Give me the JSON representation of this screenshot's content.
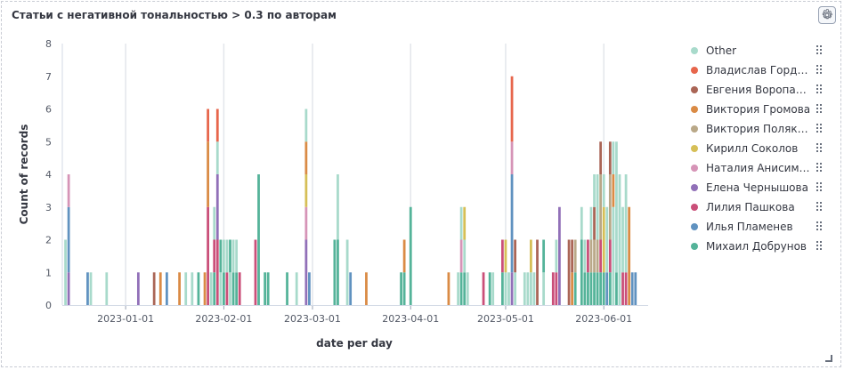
{
  "panel": {
    "title": "Статьи с негативной тональностью > 0.3 по авторам",
    "settings_icon": "gear-icon"
  },
  "chart_data": {
    "type": "bar",
    "stacked": true,
    "xlabel": "date per day",
    "ylabel": "Count of records",
    "ylim": [
      0,
      8
    ],
    "yticks": [
      0,
      1,
      2,
      3,
      4,
      5,
      6,
      7,
      8
    ],
    "xticks": [
      "2023-01-01",
      "2023-02-01",
      "2023-03-01",
      "2023-04-01",
      "2023-05-01",
      "2023-06-01"
    ],
    "xlim": [
      "2022-12-12",
      "2023-06-15"
    ],
    "grid": "vertical",
    "legend_position": "right",
    "series": [
      {
        "name": "Other",
        "color": "#a8dacb"
      },
      {
        "name": "Владислав Горделадзе",
        "color": "#e7664c"
      },
      {
        "name": "Евгения Воропаева",
        "color": "#aa6556"
      },
      {
        "name": "Виктория Громова",
        "color": "#da8b45"
      },
      {
        "name": "Виктория Полякова",
        "color": "#b9a888"
      },
      {
        "name": "Кирилл Соколов",
        "color": "#d6bf57"
      },
      {
        "name": "Наталия Анисимова",
        "color": "#d694b7"
      },
      {
        "name": "Елена Чернышова",
        "color": "#9170b8"
      },
      {
        "name": "Лилия Пашкова",
        "color": "#ca4f79"
      },
      {
        "name": "Илья Пламенев",
        "color": "#6092c0"
      },
      {
        "name": "Михаил Добрунов",
        "color": "#54b399"
      }
    ],
    "bars": [
      {
        "date": "2022-12-13",
        "stack": [
          [
            "Other",
            2
          ]
        ]
      },
      {
        "date": "2022-12-14",
        "stack": [
          [
            "Елена Чернышова",
            1
          ],
          [
            "Илья Пламенев",
            2
          ],
          [
            "Наталия Анисимова",
            1
          ]
        ]
      },
      {
        "date": "2022-12-20",
        "stack": [
          [
            "Илья Пламенев",
            1
          ]
        ]
      },
      {
        "date": "2022-12-21",
        "stack": [
          [
            "Other",
            1
          ]
        ]
      },
      {
        "date": "2022-12-26",
        "stack": [
          [
            "Other",
            1
          ]
        ]
      },
      {
        "date": "2023-01-05",
        "stack": [
          [
            "Елена Чернышова",
            1
          ]
        ]
      },
      {
        "date": "2023-01-10",
        "stack": [
          [
            "Евгения Воропаева",
            1
          ]
        ]
      },
      {
        "date": "2023-01-12",
        "stack": [
          [
            "Виктория Громова",
            1
          ]
        ]
      },
      {
        "date": "2023-01-14",
        "stack": [
          [
            "Илья Пламенев",
            1
          ]
        ]
      },
      {
        "date": "2023-01-18",
        "stack": [
          [
            "Виктория Громова",
            1
          ]
        ]
      },
      {
        "date": "2023-01-20",
        "stack": [
          [
            "Other",
            1
          ]
        ]
      },
      {
        "date": "2023-01-22",
        "stack": [
          [
            "Other",
            1
          ]
        ]
      },
      {
        "date": "2023-01-24",
        "stack": [
          [
            "Михаил Добрунов",
            1
          ]
        ]
      },
      {
        "date": "2023-01-26",
        "stack": [
          [
            "Виктория Громова",
            1
          ]
        ]
      },
      {
        "date": "2023-01-27",
        "stack": [
          [
            "Лилия Пашкова",
            3
          ],
          [
            "Виктория Громова",
            2
          ],
          [
            "Владислав Горделадзе",
            1
          ]
        ]
      },
      {
        "date": "2023-01-28",
        "stack": [
          [
            "Other",
            1
          ]
        ]
      },
      {
        "date": "2023-01-29",
        "stack": [
          [
            "Михаил Добрунов",
            1
          ],
          [
            "Лилия Пашкова",
            1
          ],
          [
            "Other",
            1
          ]
        ]
      },
      {
        "date": "2023-01-30",
        "stack": [
          [
            "Лилия Пашкова",
            2
          ],
          [
            "Елена Чернышова",
            2
          ],
          [
            "Other",
            1
          ],
          [
            "Владислав Горделадзе",
            1
          ]
        ]
      },
      {
        "date": "2023-01-31",
        "stack": [
          [
            "Other",
            1
          ],
          [
            "Михаил Добрунов",
            1
          ]
        ]
      },
      {
        "date": "2023-02-01",
        "stack": [
          [
            "Михаил Добрунов",
            1
          ],
          [
            "Other",
            1
          ]
        ]
      },
      {
        "date": "2023-02-02",
        "stack": [
          [
            "Лилия Пашкова",
            1
          ],
          [
            "Other",
            1
          ]
        ]
      },
      {
        "date": "2023-02-03",
        "stack": [
          [
            "Other",
            1
          ],
          [
            "Михаил Добрунов",
            1
          ]
        ]
      },
      {
        "date": "2023-02-04",
        "stack": [
          [
            "Михаил Добрунов",
            1
          ],
          [
            "Other",
            1
          ]
        ]
      },
      {
        "date": "2023-02-05",
        "stack": [
          [
            "Михаил Добрунов",
            1
          ],
          [
            "Other",
            1
          ]
        ]
      },
      {
        "date": "2023-02-06",
        "stack": [
          [
            "Лилия Пашкова",
            1
          ]
        ]
      },
      {
        "date": "2023-02-11",
        "stack": [
          [
            "Лилия Пашкова",
            2
          ]
        ]
      },
      {
        "date": "2023-02-12",
        "stack": [
          [
            "Михаил Добрунов",
            4
          ]
        ]
      },
      {
        "date": "2023-02-14",
        "stack": [
          [
            "Михаил Добрунов",
            1
          ]
        ]
      },
      {
        "date": "2023-02-15",
        "stack": [
          [
            "Михаил Добрунов",
            1
          ]
        ]
      },
      {
        "date": "2023-02-21",
        "stack": [
          [
            "Михаил Добрунов",
            1
          ]
        ]
      },
      {
        "date": "2023-02-24",
        "stack": [
          [
            "Other",
            1
          ]
        ]
      },
      {
        "date": "2023-02-27",
        "stack": [
          [
            "Елена Чернышова",
            2
          ],
          [
            "Наталия Анисимова",
            1
          ],
          [
            "Кирилл Соколов",
            1
          ],
          [
            "Виктория Громова",
            1
          ],
          [
            "Other",
            1
          ]
        ]
      },
      {
        "date": "2023-02-28",
        "stack": [
          [
            "Илья Пламенев",
            1
          ]
        ]
      },
      {
        "date": "2023-03-08",
        "stack": [
          [
            "Михаил Добрунов",
            2
          ]
        ]
      },
      {
        "date": "2023-03-09",
        "stack": [
          [
            "Михаил Добрунов",
            2
          ],
          [
            "Other",
            2
          ]
        ]
      },
      {
        "date": "2023-03-12",
        "stack": [
          [
            "Other",
            2
          ]
        ]
      },
      {
        "date": "2023-03-13",
        "stack": [
          [
            "Илья Пламенев",
            1
          ]
        ]
      },
      {
        "date": "2023-03-18",
        "stack": [
          [
            "Виктория Громова",
            1
          ]
        ]
      },
      {
        "date": "2023-03-29",
        "stack": [
          [
            "Михаил Добрунов",
            1
          ]
        ]
      },
      {
        "date": "2023-03-30",
        "stack": [
          [
            "Михаил Добрунов",
            1
          ],
          [
            "Виктория Громова",
            1
          ]
        ]
      },
      {
        "date": "2023-04-01",
        "stack": [
          [
            "Михаил Добрунов",
            3
          ]
        ]
      },
      {
        "date": "2023-04-13",
        "stack": [
          [
            "Виктория Громова",
            1
          ]
        ]
      },
      {
        "date": "2023-04-16",
        "stack": [
          [
            "Other",
            1
          ]
        ]
      },
      {
        "date": "2023-04-17",
        "stack": [
          [
            "Михаил Добрунов",
            1
          ],
          [
            "Наталия Анисимова",
            1
          ],
          [
            "Other",
            1
          ]
        ]
      },
      {
        "date": "2023-04-18",
        "stack": [
          [
            "Михаил Добрунов",
            1
          ],
          [
            "Other",
            1
          ],
          [
            "Кирилл Соколов",
            1
          ]
        ]
      },
      {
        "date": "2023-04-19",
        "stack": [
          [
            "Other",
            1
          ]
        ]
      },
      {
        "date": "2023-04-24",
        "stack": [
          [
            "Лилия Пашкова",
            1
          ]
        ]
      },
      {
        "date": "2023-04-26",
        "stack": [
          [
            "Михаил Добрунов",
            1
          ]
        ]
      },
      {
        "date": "2023-04-27",
        "stack": [
          [
            "Other",
            1
          ]
        ]
      },
      {
        "date": "2023-04-30",
        "stack": [
          [
            "Михаил Добрунов",
            1
          ],
          [
            "Лилия Пашкова",
            1
          ]
        ]
      },
      {
        "date": "2023-05-01",
        "stack": [
          [
            "Other",
            1
          ],
          [
            "Кирилл Соколов",
            1
          ]
        ]
      },
      {
        "date": "2023-05-02",
        "stack": [
          [
            "Other",
            1
          ]
        ]
      },
      {
        "date": "2023-05-03",
        "stack": [
          [
            "Елена Чернышова",
            1
          ],
          [
            "Илья Пламенев",
            3
          ],
          [
            "Наталия Анисимова",
            1
          ],
          [
            "Владислав Горделадзе",
            2
          ]
        ]
      },
      {
        "date": "2023-05-04",
        "stack": [
          [
            "Other",
            1
          ],
          [
            "Евгения Воропаева",
            1
          ]
        ]
      },
      {
        "date": "2023-05-07",
        "stack": [
          [
            "Other",
            1
          ]
        ]
      },
      {
        "date": "2023-05-08",
        "stack": [
          [
            "Other",
            1
          ]
        ]
      },
      {
        "date": "2023-05-09",
        "stack": [
          [
            "Other",
            1
          ],
          [
            "Кирилл Соколов",
            1
          ]
        ]
      },
      {
        "date": "2023-05-10",
        "stack": [
          [
            "Other",
            1
          ]
        ]
      },
      {
        "date": "2023-05-11",
        "stack": [
          [
            "Евгения Воропаева",
            2
          ]
        ]
      },
      {
        "date": "2023-05-13",
        "stack": [
          [
            "Other",
            1
          ],
          [
            "Михаил Добрунов",
            1
          ]
        ]
      },
      {
        "date": "2023-05-16",
        "stack": [
          [
            "Лилия Пашкова",
            1
          ]
        ]
      },
      {
        "date": "2023-05-17",
        "stack": [
          [
            "Лилия Пашкова",
            1
          ],
          [
            "Other",
            1
          ]
        ]
      },
      {
        "date": "2023-05-18",
        "stack": [
          [
            "Елена Чернышова",
            3
          ]
        ]
      },
      {
        "date": "2023-05-21",
        "stack": [
          [
            "Евгения Воропаева",
            2
          ]
        ]
      },
      {
        "date": "2023-05-22",
        "stack": [
          [
            "Виктория Громова",
            1
          ],
          [
            "Евгения Воропаева",
            1
          ]
        ]
      },
      {
        "date": "2023-05-23",
        "stack": [
          [
            "Михаил Добрунов",
            1
          ],
          [
            "Виктория Полякова",
            1
          ]
        ]
      },
      {
        "date": "2023-05-25",
        "stack": [
          [
            "Михаил Добрунов",
            2
          ],
          [
            "Other",
            1
          ]
        ]
      },
      {
        "date": "2023-05-26",
        "stack": [
          [
            "Михаил Добрунов",
            1
          ],
          [
            "Other",
            1
          ]
        ]
      },
      {
        "date": "2023-05-27",
        "stack": [
          [
            "Михаил Добрунов",
            1
          ],
          [
            "Лилия Пашкова",
            1
          ]
        ]
      },
      {
        "date": "2023-05-28",
        "stack": [
          [
            "Михаил Добрунов",
            1
          ],
          [
            "Виктория Полякова",
            1
          ],
          [
            "Other",
            1
          ]
        ]
      },
      {
        "date": "2023-05-29",
        "stack": [
          [
            "Михаил Добрунов",
            1
          ],
          [
            "Виктория Полякова",
            1
          ],
          [
            "Евгения Воропаева",
            1
          ],
          [
            "Other",
            1
          ]
        ]
      },
      {
        "date": "2023-05-30",
        "stack": [
          [
            "Михаил Добрунов",
            1
          ],
          [
            "Виктория Полякова",
            1
          ],
          [
            "Other",
            2
          ]
        ]
      },
      {
        "date": "2023-05-31",
        "stack": [
          [
            "Михаил Добрунов",
            1
          ],
          [
            "Лилия Пашкова",
            1
          ],
          [
            "Виктория Полякова",
            2
          ],
          [
            "Евгения Воропаева",
            1
          ]
        ]
      },
      {
        "date": "2023-06-01",
        "stack": [
          [
            "Михаил Добрунов",
            1
          ],
          [
            "Кирилл Соколов",
            2
          ],
          [
            "Other",
            1
          ]
        ]
      },
      {
        "date": "2023-06-02",
        "stack": [
          [
            "Илья Пламенев",
            1
          ],
          [
            "Other",
            2
          ]
        ]
      },
      {
        "date": "2023-06-03",
        "stack": [
          [
            "Михаил Добрунов",
            1
          ],
          [
            "Лилия Пашкова",
            1
          ],
          [
            "Виктория Полякова",
            2
          ],
          [
            "Евгения Воропаева",
            1
          ]
        ]
      },
      {
        "date": "2023-06-04",
        "stack": [
          [
            "Other",
            3
          ],
          [
            "Виктория Громова",
            1
          ],
          [
            "Other",
            1
          ]
        ]
      },
      {
        "date": "2023-06-05",
        "stack": [
          [
            "Михаил Добрунов",
            1
          ],
          [
            "Other",
            4
          ]
        ]
      },
      {
        "date": "2023-06-06",
        "stack": [
          [
            "Other",
            4
          ]
        ]
      },
      {
        "date": "2023-06-07",
        "stack": [
          [
            "Лилия Пашкова",
            1
          ],
          [
            "Other",
            2
          ]
        ]
      },
      {
        "date": "2023-06-08",
        "stack": [
          [
            "Лилия Пашкова",
            1
          ],
          [
            "Other",
            3
          ]
        ]
      },
      {
        "date": "2023-06-09",
        "stack": [
          [
            "Виктория Громова",
            3
          ]
        ]
      },
      {
        "date": "2023-06-10",
        "stack": [
          [
            "Илья Пламенев",
            1
          ]
        ]
      },
      {
        "date": "2023-06-11",
        "stack": [
          [
            "Илья Пламенев",
            1
          ]
        ]
      }
    ]
  }
}
